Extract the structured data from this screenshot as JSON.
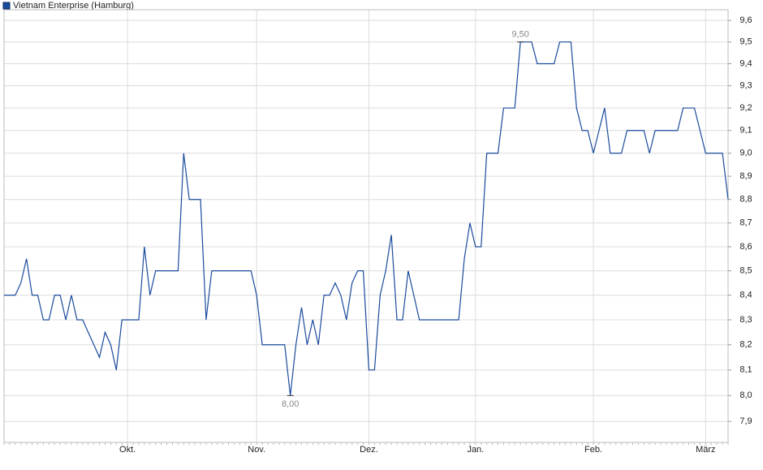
{
  "chart_data": {
    "type": "line",
    "legend": "Vietnam Enterprise (Hamburg)",
    "categories": [
      null,
      null,
      null,
      null,
      null,
      null,
      null,
      null,
      null,
      null,
      null,
      null,
      null,
      null,
      null,
      null,
      null,
      null,
      null,
      null,
      null,
      null,
      "Okt.",
      null,
      null,
      null,
      null,
      null,
      null,
      null,
      null,
      null,
      null,
      null,
      null,
      null,
      null,
      null,
      null,
      null,
      null,
      null,
      null,
      null,
      null,
      "Nov.",
      null,
      null,
      null,
      null,
      null,
      null,
      null,
      null,
      null,
      null,
      null,
      null,
      null,
      null,
      null,
      null,
      null,
      null,
      null,
      "Dez.",
      null,
      null,
      null,
      null,
      null,
      null,
      null,
      null,
      null,
      null,
      null,
      null,
      null,
      null,
      null,
      null,
      null,
      null,
      "Jan.",
      null,
      null,
      null,
      null,
      null,
      null,
      null,
      null,
      null,
      null,
      null,
      null,
      null,
      null,
      null,
      null,
      null,
      null,
      null,
      null,
      "Feb.",
      null,
      null,
      null,
      null,
      null,
      null,
      null,
      null,
      null,
      null,
      null,
      null,
      null,
      null,
      null,
      null,
      null,
      null,
      null,
      "März",
      null,
      null,
      null,
      null
    ],
    "series": [
      {
        "name": "Vietnam Enterprise (Hamburg)",
        "color": "#1a4a9c",
        "values": [
          8.4,
          8.4,
          8.4,
          8.45,
          8.55,
          8.4,
          8.4,
          8.3,
          8.3,
          8.4,
          8.4,
          8.3,
          8.4,
          8.3,
          8.3,
          8.25,
          8.2,
          8.15,
          8.25,
          8.2,
          8.1,
          8.3,
          8.3,
          8.3,
          8.3,
          8.6,
          8.4,
          8.5,
          8.5,
          8.5,
          8.5,
          8.5,
          9.0,
          8.8,
          8.8,
          8.8,
          8.3,
          8.5,
          8.5,
          8.5,
          8.5,
          8.5,
          8.5,
          8.5,
          8.5,
          8.4,
          8.2,
          8.2,
          8.2,
          8.2,
          8.2,
          8.0,
          8.2,
          8.35,
          8.2,
          8.3,
          8.2,
          8.4,
          8.4,
          8.45,
          8.4,
          8.3,
          8.45,
          8.5,
          8.5,
          8.1,
          8.1,
          8.4,
          8.5,
          8.65,
          8.3,
          8.3,
          8.5,
          8.4,
          8.3,
          8.3,
          8.3,
          8.3,
          8.3,
          8.3,
          8.3,
          8.3,
          8.55,
          8.7,
          8.6,
          8.6,
          9.0,
          9.0,
          9.0,
          9.2,
          9.2,
          9.2,
          9.5,
          9.5,
          9.5,
          9.4,
          9.4,
          9.4,
          9.4,
          9.5,
          9.5,
          9.5,
          9.2,
          9.1,
          9.1,
          9.0,
          9.1,
          9.2,
          9.0,
          9.0,
          9.0,
          9.1,
          9.1,
          9.1,
          9.1,
          9.0,
          9.1,
          9.1,
          9.1,
          9.1,
          9.1,
          9.2,
          9.2,
          9.2,
          9.1,
          9.0,
          9.0,
          9.0,
          9.0,
          8.8
        ],
        "value_labels": [
          null,
          null,
          null,
          null,
          null,
          null,
          null,
          null,
          null,
          null,
          null,
          null,
          null,
          null,
          null,
          null,
          null,
          null,
          null,
          null,
          null,
          null,
          null,
          null,
          null,
          null,
          null,
          null,
          null,
          null,
          null,
          null,
          null,
          null,
          null,
          null,
          null,
          null,
          null,
          null,
          null,
          null,
          null,
          null,
          null,
          null,
          null,
          null,
          null,
          null,
          null,
          "8,00",
          null,
          null,
          null,
          null,
          null,
          null,
          null,
          null,
          null,
          null,
          null,
          null,
          null,
          null,
          null,
          null,
          null,
          null,
          null,
          null,
          null,
          null,
          null,
          null,
          null,
          null,
          null,
          null,
          null,
          null,
          null,
          null,
          null,
          null,
          null,
          null,
          null,
          null,
          null,
          null,
          "9,50",
          null,
          null,
          null,
          null,
          null,
          null,
          null,
          null,
          null,
          null,
          null,
          null,
          null,
          null,
          null,
          null,
          null,
          null,
          null,
          null,
          null,
          null,
          null,
          null,
          null,
          null,
          null,
          null,
          null,
          null,
          null,
          null,
          null,
          null,
          null,
          null
        ]
      }
    ],
    "ylim": [
      7.82,
      9.65
    ],
    "log_y": true,
    "grid": true,
    "yticks": [
      {
        "value": 7.9,
        "label": "7,9"
      },
      {
        "value": 8.0,
        "label": "8,0"
      },
      {
        "value": 8.1,
        "label": "8,1"
      },
      {
        "value": 8.2,
        "label": "8,2"
      },
      {
        "value": 8.3,
        "label": "8,3"
      },
      {
        "value": 8.4,
        "label": "8,4"
      },
      {
        "value": 8.5,
        "label": "8,5"
      },
      {
        "value": 8.6,
        "label": "8,6"
      },
      {
        "value": 8.7,
        "label": "8,7"
      },
      {
        "value": 8.8,
        "label": "8,8"
      },
      {
        "value": 8.9,
        "label": "8,9"
      },
      {
        "value": 9.0,
        "label": "9,0"
      },
      {
        "value": 9.1,
        "label": "9,1"
      },
      {
        "value": 9.2,
        "label": "9,2"
      },
      {
        "value": 9.3,
        "label": "9,3"
      },
      {
        "value": 9.4,
        "label": "9,4"
      },
      {
        "value": 9.5,
        "label": "9,5"
      },
      {
        "value": 9.6,
        "label": "9,6"
      }
    ]
  }
}
